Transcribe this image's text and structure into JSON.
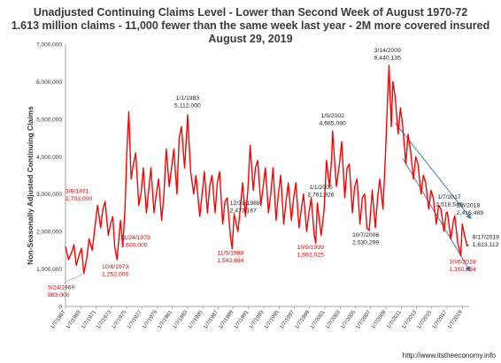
{
  "titles": {
    "line1": "Unadjusted Continuing Claims Level - Lower than Second Week of August 1970-72",
    "line2": "1.613 million claims -  11,000 fewer than the same week last year - 2M more covered insured",
    "line3": "August 29, 2019"
  },
  "credit": "http://www.itstheeconomy.info",
  "colors": {
    "series": "#ff0000",
    "annotation_red": "#dd0000",
    "annotation_dark": "#222222",
    "arrow": "#3b84c4"
  },
  "chart_data": {
    "type": "line",
    "ylabel": "Non-Seasonally Adjusted Continuing Claims",
    "xlabel": "",
    "ylim": [
      0,
      7000000
    ],
    "y_ticks": [
      "0",
      "1,000,000",
      "2,000,000",
      "3,000,000",
      "4,000,000",
      "5,000,000",
      "6,000,000",
      "7,000,000"
    ],
    "x_range": [
      1967.0,
      2019.9
    ],
    "x_ticks": [
      "1/7/1967",
      "1/7/1969",
      "1/7/1971",
      "1/7/1973",
      "1/7/1975",
      "1/7/1977",
      "1/7/1979",
      "1/7/1981",
      "1/7/1983",
      "1/7/1985",
      "1/7/1987",
      "1/7/1989",
      "1/7/1991",
      "1/7/1993",
      "1/7/1995",
      "1/7/1997",
      "1/7/1999",
      "1/7/2001",
      "1/7/2003",
      "1/7/2005",
      "1/7/2007",
      "1/7/2009",
      "1/7/2011",
      "1/7/2013",
      "1/7/2015",
      "1/7/2017",
      "1/7/2019"
    ],
    "grid": false,
    "legend": "none",
    "series": [
      {
        "x": [
          1967.0,
          1967.4,
          1967.9,
          1968.1,
          1968.4,
          1968.9,
          1969.1,
          1969.4,
          1969.8,
          1970.1,
          1970.5,
          1970.9,
          1971.2,
          1971.6,
          1971.9,
          1972.2,
          1972.6,
          1972.9,
          1973.2,
          1973.45,
          1973.75,
          1974.2,
          1974.5,
          1974.8,
          1975.05,
          1975.3,
          1975.6,
          1975.9,
          1976.2,
          1976.6,
          1976.9,
          1977.2,
          1977.6,
          1977.9,
          1978.2,
          1978.6,
          1978.9,
          1979.2,
          1979.6,
          1979.9,
          1980.2,
          1980.6,
          1980.9,
          1981.2,
          1981.6,
          1981.9,
          1982.2,
          1982.6,
          1982.9,
          1983.0,
          1983.4,
          1983.8,
          1984.1,
          1984.6,
          1984.9,
          1985.2,
          1985.6,
          1985.9,
          1986.2,
          1986.6,
          1986.9,
          1987.2,
          1987.6,
          1987.9,
          1988.2,
          1988.6,
          1988.85,
          1989.1,
          1989.6,
          1989.9,
          1990.2,
          1990.6,
          1990.9,
          1991.2,
          1991.6,
          1991.9,
          1992.2,
          1992.6,
          1992.9,
          1993.2,
          1993.6,
          1993.9,
          1994.2,
          1994.6,
          1994.9,
          1995.2,
          1995.6,
          1995.9,
          1996.2,
          1996.6,
          1996.9,
          1997.2,
          1997.6,
          1997.9,
          1998.2,
          1998.6,
          1998.9,
          1999.2,
          1999.6,
          1999.8,
          2000.0,
          2000.5,
          2000.9,
          2001.2,
          2001.6,
          2001.9,
          2002.0,
          2002.5,
          2002.9,
          2003.2,
          2003.6,
          2003.9,
          2004.2,
          2004.6,
          2004.9,
          2005.2,
          2005.6,
          2005.9,
          2006.2,
          2006.5,
          2006.8,
          2007.2,
          2007.6,
          2007.9,
          2008.2,
          2008.6,
          2008.9,
          2009.2,
          2009.4,
          2009.7,
          2009.9,
          2010.2,
          2010.6,
          2010.9,
          2011.2,
          2011.6,
          2011.9,
          2012.2,
          2012.6,
          2012.9,
          2013.2,
          2013.6,
          2013.9,
          2014.2,
          2014.6,
          2014.9,
          2015.2,
          2015.6,
          2015.9,
          2016.2,
          2016.6,
          2016.9,
          2017.05,
          2017.5,
          2017.85,
          2018.02,
          2018.4,
          2018.8,
          2019.0,
          2019.3,
          2019.63,
          2019.8
        ],
        "values": [
          1600000,
          1250000,
          1500000,
          1650000,
          1100000,
          1450000,
          1550000,
          883000,
          1300000,
          1800000,
          1500000,
          2200000,
          2703000,
          2100000,
          2600000,
          2800000,
          1900000,
          2200000,
          2400000,
          1600000,
          1252000,
          2300000,
          1600000,
          2600000,
          4200000,
          5200000,
          3400000,
          3800000,
          4100000,
          2700000,
          3000000,
          3700000,
          2500000,
          3100000,
          3700000,
          2500000,
          3000000,
          3400000,
          2300000,
          3000000,
          4200000,
          3200000,
          3700000,
          4200000,
          3000000,
          4500000,
          4800000,
          3700000,
          4700000,
          5112000,
          3600000,
          3000000,
          3500000,
          2400000,
          3000000,
          3600000,
          2500000,
          3200000,
          3500000,
          2500000,
          3300000,
          3600000,
          2200000,
          2800000,
          2900000,
          1900000,
          1542684,
          2473167,
          2000000,
          2600000,
          3300000,
          2400000,
          3100000,
          4300000,
          3100000,
          3700000,
          3900000,
          2700000,
          3200000,
          3700000,
          2500000,
          3000000,
          3700000,
          2300000,
          3000000,
          3500000,
          2200000,
          2800000,
          3300000,
          2300000,
          2900000,
          3300000,
          2100000,
          2600000,
          3000000,
          2000000,
          2500000,
          2900000,
          1900000,
          1692025,
          2761926,
          1900000,
          2600000,
          3900000,
          3200000,
          4000000,
          4685080,
          3200000,
          3800000,
          4400000,
          2900000,
          3700000,
          3800000,
          2500000,
          3200000,
          3400000,
          2200000,
          2900000,
          3000000,
          2100000,
          2030299,
          3100000,
          2100000,
          2900000,
          3400000,
          2600000,
          3900000,
          5500000,
          6440135,
          4800000,
          6000000,
          5600000,
          4600000,
          5300000,
          4800000,
          3800000,
          4600000,
          4200000,
          3400000,
          4000000,
          3800000,
          3000000,
          3500000,
          3300000,
          2600000,
          3100000,
          2900000,
          2200000,
          2700000,
          2600000,
          2000000,
          2500000,
          2518545,
          1800000,
          2300000,
          2416489,
          1700000,
          1350834,
          2200000,
          1900000,
          1613112,
          1650000
        ]
      }
    ],
    "annotations": [
      {
        "date": "5/24/1969",
        "value": "883,000",
        "x": 1969.4,
        "y": 883000
      },
      {
        "date": "3/6/1971",
        "value": "2,703,000",
        "x": 1971.2,
        "y": 2703000
      },
      {
        "date": "10/6/1973",
        "value": "1,252,000",
        "x": 1973.75,
        "y": 1252000
      },
      {
        "date": "11/24/1973",
        "value": "1,600,000",
        "x": 1973.9,
        "y": 1600000
      },
      {
        "date": "1/1/1983",
        "value": "5,112,000",
        "x": 1983.0,
        "y": 5112000
      },
      {
        "date": "12/31/1988",
        "value": "2,473,167",
        "x": 1989.0,
        "y": 2473167
      },
      {
        "date": "11/5/1988",
        "value": "1,542,684",
        "x": 1988.85,
        "y": 1542684
      },
      {
        "date": "1/1/2000",
        "value": "2,761,926",
        "x": 2000.0,
        "y": 2761926
      },
      {
        "date": "10/9/1999",
        "value": "1,692,025",
        "x": 1999.8,
        "y": 1692025
      },
      {
        "date": "1/5/2002",
        "value": "4,685,080",
        "x": 2002.0,
        "y": 4685080
      },
      {
        "date": "10/7/2006",
        "value": "2,030,299",
        "x": 2006.8,
        "y": 2030299
      },
      {
        "date": "3/14/2009",
        "value": "6,440,135",
        "x": 2009.2,
        "y": 6440135
      },
      {
        "date": "1/7/2017",
        "value": "2,518,545",
        "x": 2017.05,
        "y": 2518545
      },
      {
        "date": "1/6/2018",
        "value": "2,416,489",
        "x": 2018.02,
        "y": 2416489
      },
      {
        "date": "10/6/2018",
        "value": "1,350,834",
        "x": 2018.8,
        "y": 1350834
      },
      {
        "date": "8/17/2019",
        "value": "1,613,112",
        "x": 2019.63,
        "y": 1613112
      }
    ]
  }
}
